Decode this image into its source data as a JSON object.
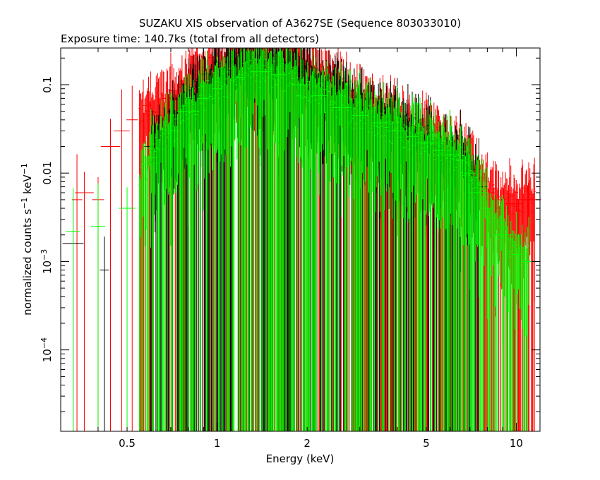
{
  "chart_data": {
    "type": "scatter",
    "title": "SUZAKU XIS observation of A3627SE (Sequence 803033010)",
    "subtitle": "Exposure time: 140.7ks (total from all detectors)",
    "xlabel": "Energy (keV)",
    "ylabel": "normalized counts s⁻¹ keV⁻¹",
    "x_scale": "log",
    "y_scale": "log",
    "xlim": [
      0.3,
      12
    ],
    "ylim": [
      1.2e-05,
      0.26
    ],
    "x_ticks": [
      {
        "value": 0.5,
        "label": "0.5"
      },
      {
        "value": 1,
        "label": "1"
      },
      {
        "value": 2,
        "label": "2"
      },
      {
        "value": 5,
        "label": "5"
      },
      {
        "value": 10,
        "label": "10"
      }
    ],
    "y_ticks": [
      {
        "value": 0.1,
        "label": "0.1"
      },
      {
        "value": 0.01,
        "label": "0.01"
      },
      {
        "value": 0.001,
        "label": "10",
        "sup": "−3"
      },
      {
        "value": 0.0001,
        "label": "10",
        "sup": "−4"
      }
    ],
    "grid": false,
    "legend": "none",
    "series": [
      {
        "color": "#000000",
        "points": [
          [
            0.33,
            0.0016
          ],
          [
            0.42,
            0.0008
          ],
          [
            0.62,
            0.02
          ],
          [
            0.8,
            0.07
          ],
          [
            1.0,
            0.13
          ],
          [
            1.2,
            0.17
          ],
          [
            1.4,
            0.19
          ],
          [
            1.6,
            0.18
          ],
          [
            1.9,
            0.14
          ],
          [
            2.2,
            0.1
          ],
          [
            2.6,
            0.07
          ],
          [
            3.0,
            0.055
          ],
          [
            3.5,
            0.045
          ],
          [
            4.0,
            0.035
          ],
          [
            4.5,
            0.03
          ],
          [
            5.0,
            0.025
          ],
          [
            5.5,
            0.02
          ],
          [
            6.0,
            0.017
          ],
          [
            6.5,
            0.015
          ],
          [
            7.0,
            0.011
          ],
          [
            7.5,
            0.007
          ]
        ]
      },
      {
        "color": "#ff0000",
        "points": [
          [
            0.34,
            0.005
          ],
          [
            0.36,
            0.006
          ],
          [
            0.4,
            0.005
          ],
          [
            0.44,
            0.02
          ],
          [
            0.48,
            0.03
          ],
          [
            0.52,
            0.04
          ],
          [
            0.6,
            0.05
          ],
          [
            0.7,
            0.07
          ],
          [
            0.8,
            0.1
          ],
          [
            0.9,
            0.13
          ],
          [
            1.0,
            0.16
          ],
          [
            1.2,
            0.2
          ],
          [
            1.4,
            0.22
          ],
          [
            1.6,
            0.21
          ],
          [
            1.9,
            0.16
          ],
          [
            2.2,
            0.12
          ],
          [
            2.6,
            0.085
          ],
          [
            3.0,
            0.065
          ],
          [
            3.5,
            0.05
          ],
          [
            4.0,
            0.04
          ],
          [
            4.5,
            0.033
          ],
          [
            5.0,
            0.028
          ],
          [
            5.5,
            0.022
          ],
          [
            6.0,
            0.019
          ],
          [
            6.5,
            0.017
          ],
          [
            7.0,
            0.012
          ],
          [
            7.5,
            0.008
          ],
          [
            8.0,
            0.006
          ],
          [
            8.5,
            0.005
          ],
          [
            9.0,
            0.004
          ],
          [
            9.5,
            0.0045
          ],
          [
            10.0,
            0.0045
          ],
          [
            10.5,
            0.005
          ],
          [
            11.0,
            0.005
          ],
          [
            11.5,
            0.005
          ]
        ]
      },
      {
        "color": "#00ff00",
        "points": [
          [
            0.33,
            0.0022
          ],
          [
            0.4,
            0.0025
          ],
          [
            0.5,
            0.004
          ],
          [
            0.6,
            0.015
          ],
          [
            0.7,
            0.03
          ],
          [
            0.8,
            0.05
          ],
          [
            0.9,
            0.07
          ],
          [
            1.0,
            0.09
          ],
          [
            1.2,
            0.12
          ],
          [
            1.4,
            0.14
          ],
          [
            1.6,
            0.13
          ],
          [
            1.9,
            0.1
          ],
          [
            2.2,
            0.075
          ],
          [
            2.6,
            0.055
          ],
          [
            3.0,
            0.045
          ],
          [
            3.5,
            0.037
          ],
          [
            4.0,
            0.03
          ],
          [
            4.5,
            0.026
          ],
          [
            5.0,
            0.022
          ],
          [
            5.5,
            0.018
          ],
          [
            6.0,
            0.016
          ],
          [
            6.5,
            0.014
          ],
          [
            7.0,
            0.01
          ],
          [
            7.5,
            0.006
          ],
          [
            8.0,
            0.004
          ],
          [
            9.0,
            0.002
          ],
          [
            10.0,
            0.0012
          ],
          [
            11.0,
            0.001
          ]
        ]
      }
    ]
  }
}
